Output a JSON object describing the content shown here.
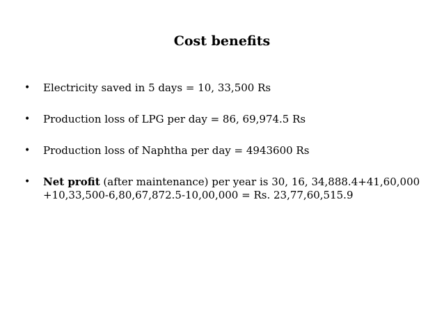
{
  "slide": {
    "title": "Cost benefits",
    "bullet_symbol": "•",
    "bullets": [
      {
        "text": "Electricity saved in 5 days = 10, 33,500 Rs"
      },
      {
        "text": "Production loss of LPG per day = 86, 69,974.5 Rs"
      },
      {
        "text": "Production loss of Naphtha per day = 4943600 Rs"
      },
      {
        "bold_text": "Net profit",
        "text": " (after maintenance) per year is 30, 16, 34,888.4+41,60,000 +10,33,500-6,80,67,872.5-10,00,000 =  Rs. 23,77,60,515.9"
      }
    ]
  }
}
